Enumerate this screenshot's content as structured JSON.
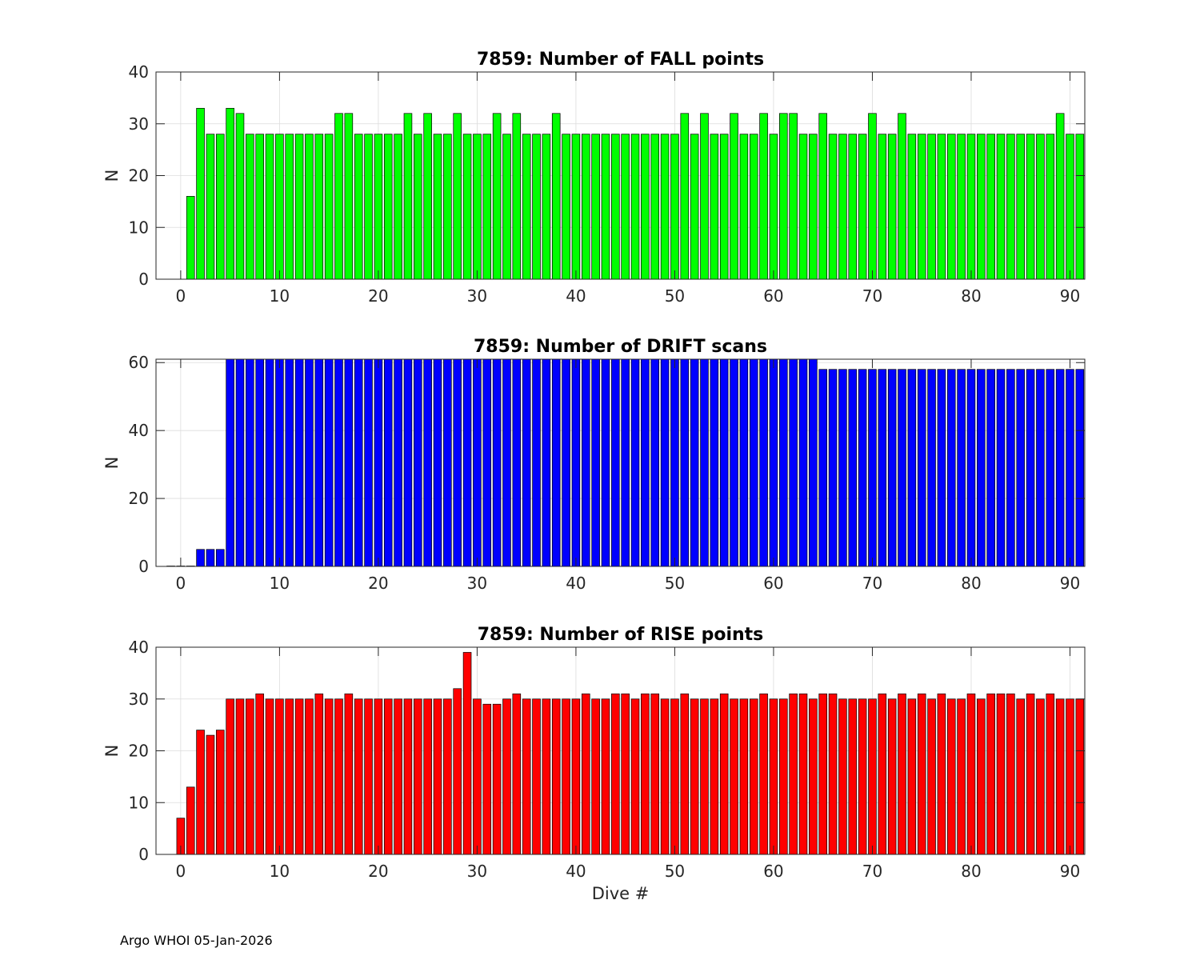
{
  "chart_data": [
    {
      "type": "bar",
      "title": "7859: Number of FALL points",
      "xlabel": "",
      "ylabel": "N",
      "xlim": [
        -2.5,
        91.5
      ],
      "ylim": [
        0,
        40
      ],
      "xticks": [
        0,
        10,
        20,
        30,
        40,
        50,
        60,
        70,
        80,
        90
      ],
      "yticks": [
        0,
        10,
        20,
        30,
        40
      ],
      "grid": true,
      "bar_color": "#00ff00",
      "x_start": 1,
      "values": [
        16,
        33,
        28,
        28,
        33,
        32,
        28,
        28,
        28,
        28,
        28,
        28,
        28,
        28,
        28,
        32,
        32,
        28,
        28,
        28,
        28,
        28,
        32,
        28,
        32,
        28,
        28,
        32,
        28,
        28,
        28,
        32,
        28,
        32,
        28,
        28,
        28,
        32,
        28,
        28,
        28,
        28,
        28,
        28,
        28,
        28,
        28,
        28,
        28,
        28,
        32,
        28,
        32,
        28,
        28,
        32,
        28,
        28,
        32,
        28,
        32,
        32,
        28,
        28,
        32,
        28,
        28,
        28,
        28,
        32,
        28,
        28,
        32,
        28,
        28,
        28,
        28,
        28,
        28,
        28,
        28,
        28,
        28,
        28,
        28,
        28,
        28,
        28,
        32,
        28,
        28
      ]
    },
    {
      "type": "bar",
      "title": "7859: Number of DRIFT scans",
      "xlabel": "",
      "ylabel": "N",
      "xlim": [
        -2.5,
        91.5
      ],
      "ylim": [
        0,
        61
      ],
      "xticks": [
        0,
        10,
        20,
        30,
        40,
        50,
        60,
        70,
        80,
        90
      ],
      "yticks": [
        0,
        20,
        40,
        60
      ],
      "grid": true,
      "bar_color": "#0000ff",
      "x_start": -1,
      "values": [
        0,
        0,
        0,
        5,
        5,
        5,
        61,
        61,
        61,
        61,
        61,
        61,
        61,
        61,
        61,
        61,
        61,
        61,
        61,
        61,
        61,
        61,
        61,
        61,
        61,
        61,
        61,
        61,
        61,
        61,
        61,
        61,
        61,
        61,
        61,
        61,
        61,
        61,
        61,
        61,
        61,
        61,
        61,
        61,
        61,
        61,
        61,
        61,
        61,
        61,
        61,
        61,
        61,
        61,
        61,
        61,
        61,
        61,
        61,
        61,
        61,
        61,
        61,
        61,
        61,
        61,
        58,
        58,
        58,
        58,
        58,
        58,
        58,
        58,
        58,
        58,
        58,
        58,
        58,
        58,
        58,
        58,
        58,
        58,
        58,
        58,
        58,
        58,
        58,
        58,
        58,
        58,
        58
      ]
    },
    {
      "type": "bar",
      "title": "7859: Number of RISE points",
      "xlabel": "Dive #",
      "ylabel": "N",
      "xlim": [
        -2.5,
        91.5
      ],
      "ylim": [
        0,
        40
      ],
      "xticks": [
        0,
        10,
        20,
        30,
        40,
        50,
        60,
        70,
        80,
        90
      ],
      "yticks": [
        0,
        10,
        20,
        30,
        40
      ],
      "grid": true,
      "bar_color": "#ff0000",
      "x_start": 0,
      "values": [
        7,
        13,
        24,
        23,
        24,
        30,
        30,
        30,
        31,
        30,
        30,
        30,
        30,
        30,
        31,
        30,
        30,
        31,
        30,
        30,
        30,
        30,
        30,
        30,
        30,
        30,
        30,
        30,
        32,
        39,
        30,
        29,
        29,
        30,
        31,
        30,
        30,
        30,
        30,
        30,
        30,
        31,
        30,
        30,
        31,
        31,
        30,
        31,
        31,
        30,
        30,
        31,
        30,
        30,
        30,
        31,
        30,
        30,
        30,
        31,
        30,
        30,
        31,
        31,
        30,
        31,
        31,
        30,
        30,
        30,
        30,
        31,
        30,
        31,
        30,
        31,
        30,
        31,
        30,
        30,
        31,
        30,
        31,
        31,
        31,
        30,
        31,
        30,
        31,
        30,
        30,
        30
      ]
    }
  ],
  "footer": "Argo WHOI 05-Jan-2026"
}
